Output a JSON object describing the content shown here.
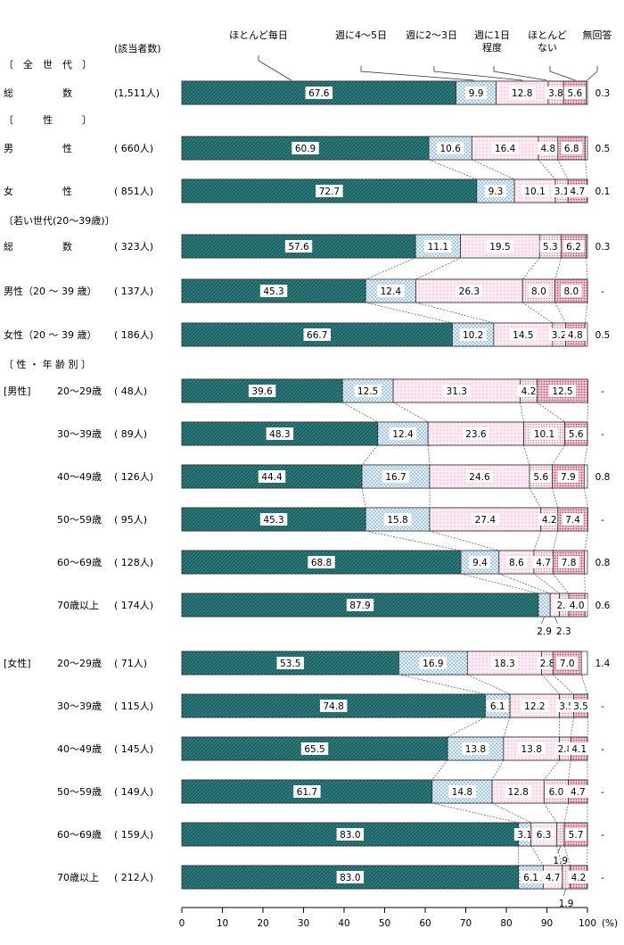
{
  "chart_data": {
    "type": "bar",
    "stacked": true,
    "orientation": "horizontal",
    "xlim": [
      0,
      100
    ],
    "xticks": [
      0,
      10,
      20,
      30,
      40,
      50,
      60,
      70,
      80,
      90,
      100
    ],
    "x_unit": "(%)",
    "count_header": "(該当者数)",
    "legend": [
      "ほとんど毎日",
      "週に4～5日",
      "週に2～3日",
      "週に1日程度",
      "ほとんどない",
      "無回答"
    ],
    "legend_lines": [
      [
        "ほとんど毎日"
      ],
      [
        "週に4～5日"
      ],
      [
        "週に2～3日"
      ],
      [
        "週に1日",
        "程度"
      ],
      [
        "ほとんど",
        "ない"
      ],
      [
        "無回答"
      ]
    ],
    "colors": [
      "#2f7f80",
      "#dcecf8",
      "#fde6f0",
      "#fdeef3",
      "#f3c8d6",
      "#ffffff"
    ],
    "sections": [
      {
        "header": "〔　全　世　代　〕",
        "rows": [
          {
            "label": "総　　　　　数",
            "count": "(1,511人)",
            "values": [
              67.6,
              9.9,
              12.8,
              3.8,
              5.6,
              0.3
            ]
          }
        ]
      },
      {
        "header": "〔　　　性　　　〕",
        "rows": [
          {
            "label": "男　　　　　性",
            "count": "( 660人)",
            "values": [
              60.9,
              10.6,
              16.4,
              4.8,
              6.8,
              0.5
            ]
          },
          {
            "label": "女　　　　　性",
            "count": "( 851人)",
            "values": [
              72.7,
              9.3,
              10.1,
              3.1,
              4.7,
              0.1
            ]
          }
        ]
      },
      {
        "header": "〔若い世代(20～39歳)〕",
        "rows": [
          {
            "label": "総　　　　　数",
            "count": "( 323人)",
            "values": [
              57.6,
              11.1,
              19.5,
              5.3,
              6.2,
              0.3
            ]
          },
          {
            "label": "男性（20 ～ 39 歳）",
            "count": "( 137人)",
            "values": [
              45.3,
              12.4,
              26.3,
              8.0,
              8.0,
              "-"
            ]
          },
          {
            "label": "女性（20 ～ 39 歳）",
            "count": "( 186人)",
            "values": [
              66.7,
              10.2,
              14.5,
              3.2,
              4.8,
              0.5
            ]
          }
        ]
      },
      {
        "header": "〔 性 ・ 年 齢 別 〕",
        "rows": [
          {
            "group": "[男性]",
            "label": "20～29歳",
            "count": "(  48人)",
            "values": [
              39.6,
              12.5,
              31.3,
              4.2,
              12.5,
              "-"
            ]
          },
          {
            "label": "30～39歳",
            "count": "(  89人)",
            "values": [
              48.3,
              12.4,
              23.6,
              10.1,
              5.6,
              "-"
            ]
          },
          {
            "label": "40～49歳",
            "count": "( 126人)",
            "values": [
              44.4,
              16.7,
              24.6,
              5.6,
              7.9,
              0.8
            ]
          },
          {
            "label": "50～59歳",
            "count": "(  95人)",
            "values": [
              45.3,
              15.8,
              27.4,
              4.2,
              7.4,
              "-"
            ]
          },
          {
            "label": "60～69歳",
            "count": "( 128人)",
            "values": [
              68.8,
              9.4,
              8.6,
              4.7,
              7.8,
              0.8
            ]
          },
          {
            "label": "70歳以上",
            "count": "( 174人)",
            "values": [
              87.9,
              2.9,
              2.3,
              2.3,
              4.0,
              0.6
            ]
          },
          {
            "group": "[女性]",
            "label": "20～29歳",
            "count": "(  71人)",
            "values": [
              53.5,
              16.9,
              18.3,
              2.8,
              7.0,
              1.4
            ]
          },
          {
            "label": "30～39歳",
            "count": "( 115人)",
            "values": [
              74.8,
              6.1,
              12.2,
              3.5,
              3.5,
              "-"
            ]
          },
          {
            "label": "40～49歳",
            "count": "( 145人)",
            "values": [
              65.5,
              13.8,
              13.8,
              2.8,
              4.1,
              "-"
            ]
          },
          {
            "label": "50～59歳",
            "count": "( 149人)",
            "values": [
              61.7,
              14.8,
              12.8,
              6.0,
              4.7,
              "-"
            ]
          },
          {
            "label": "60～69歳",
            "count": "( 159人)",
            "values": [
              83.0,
              3.1,
              6.3,
              1.9,
              5.7,
              "-"
            ]
          },
          {
            "label": "70歳以上",
            "count": "( 212人)",
            "values": [
              83.0,
              6.1,
              4.7,
              1.9,
              4.2,
              "-"
            ]
          }
        ]
      }
    ]
  }
}
